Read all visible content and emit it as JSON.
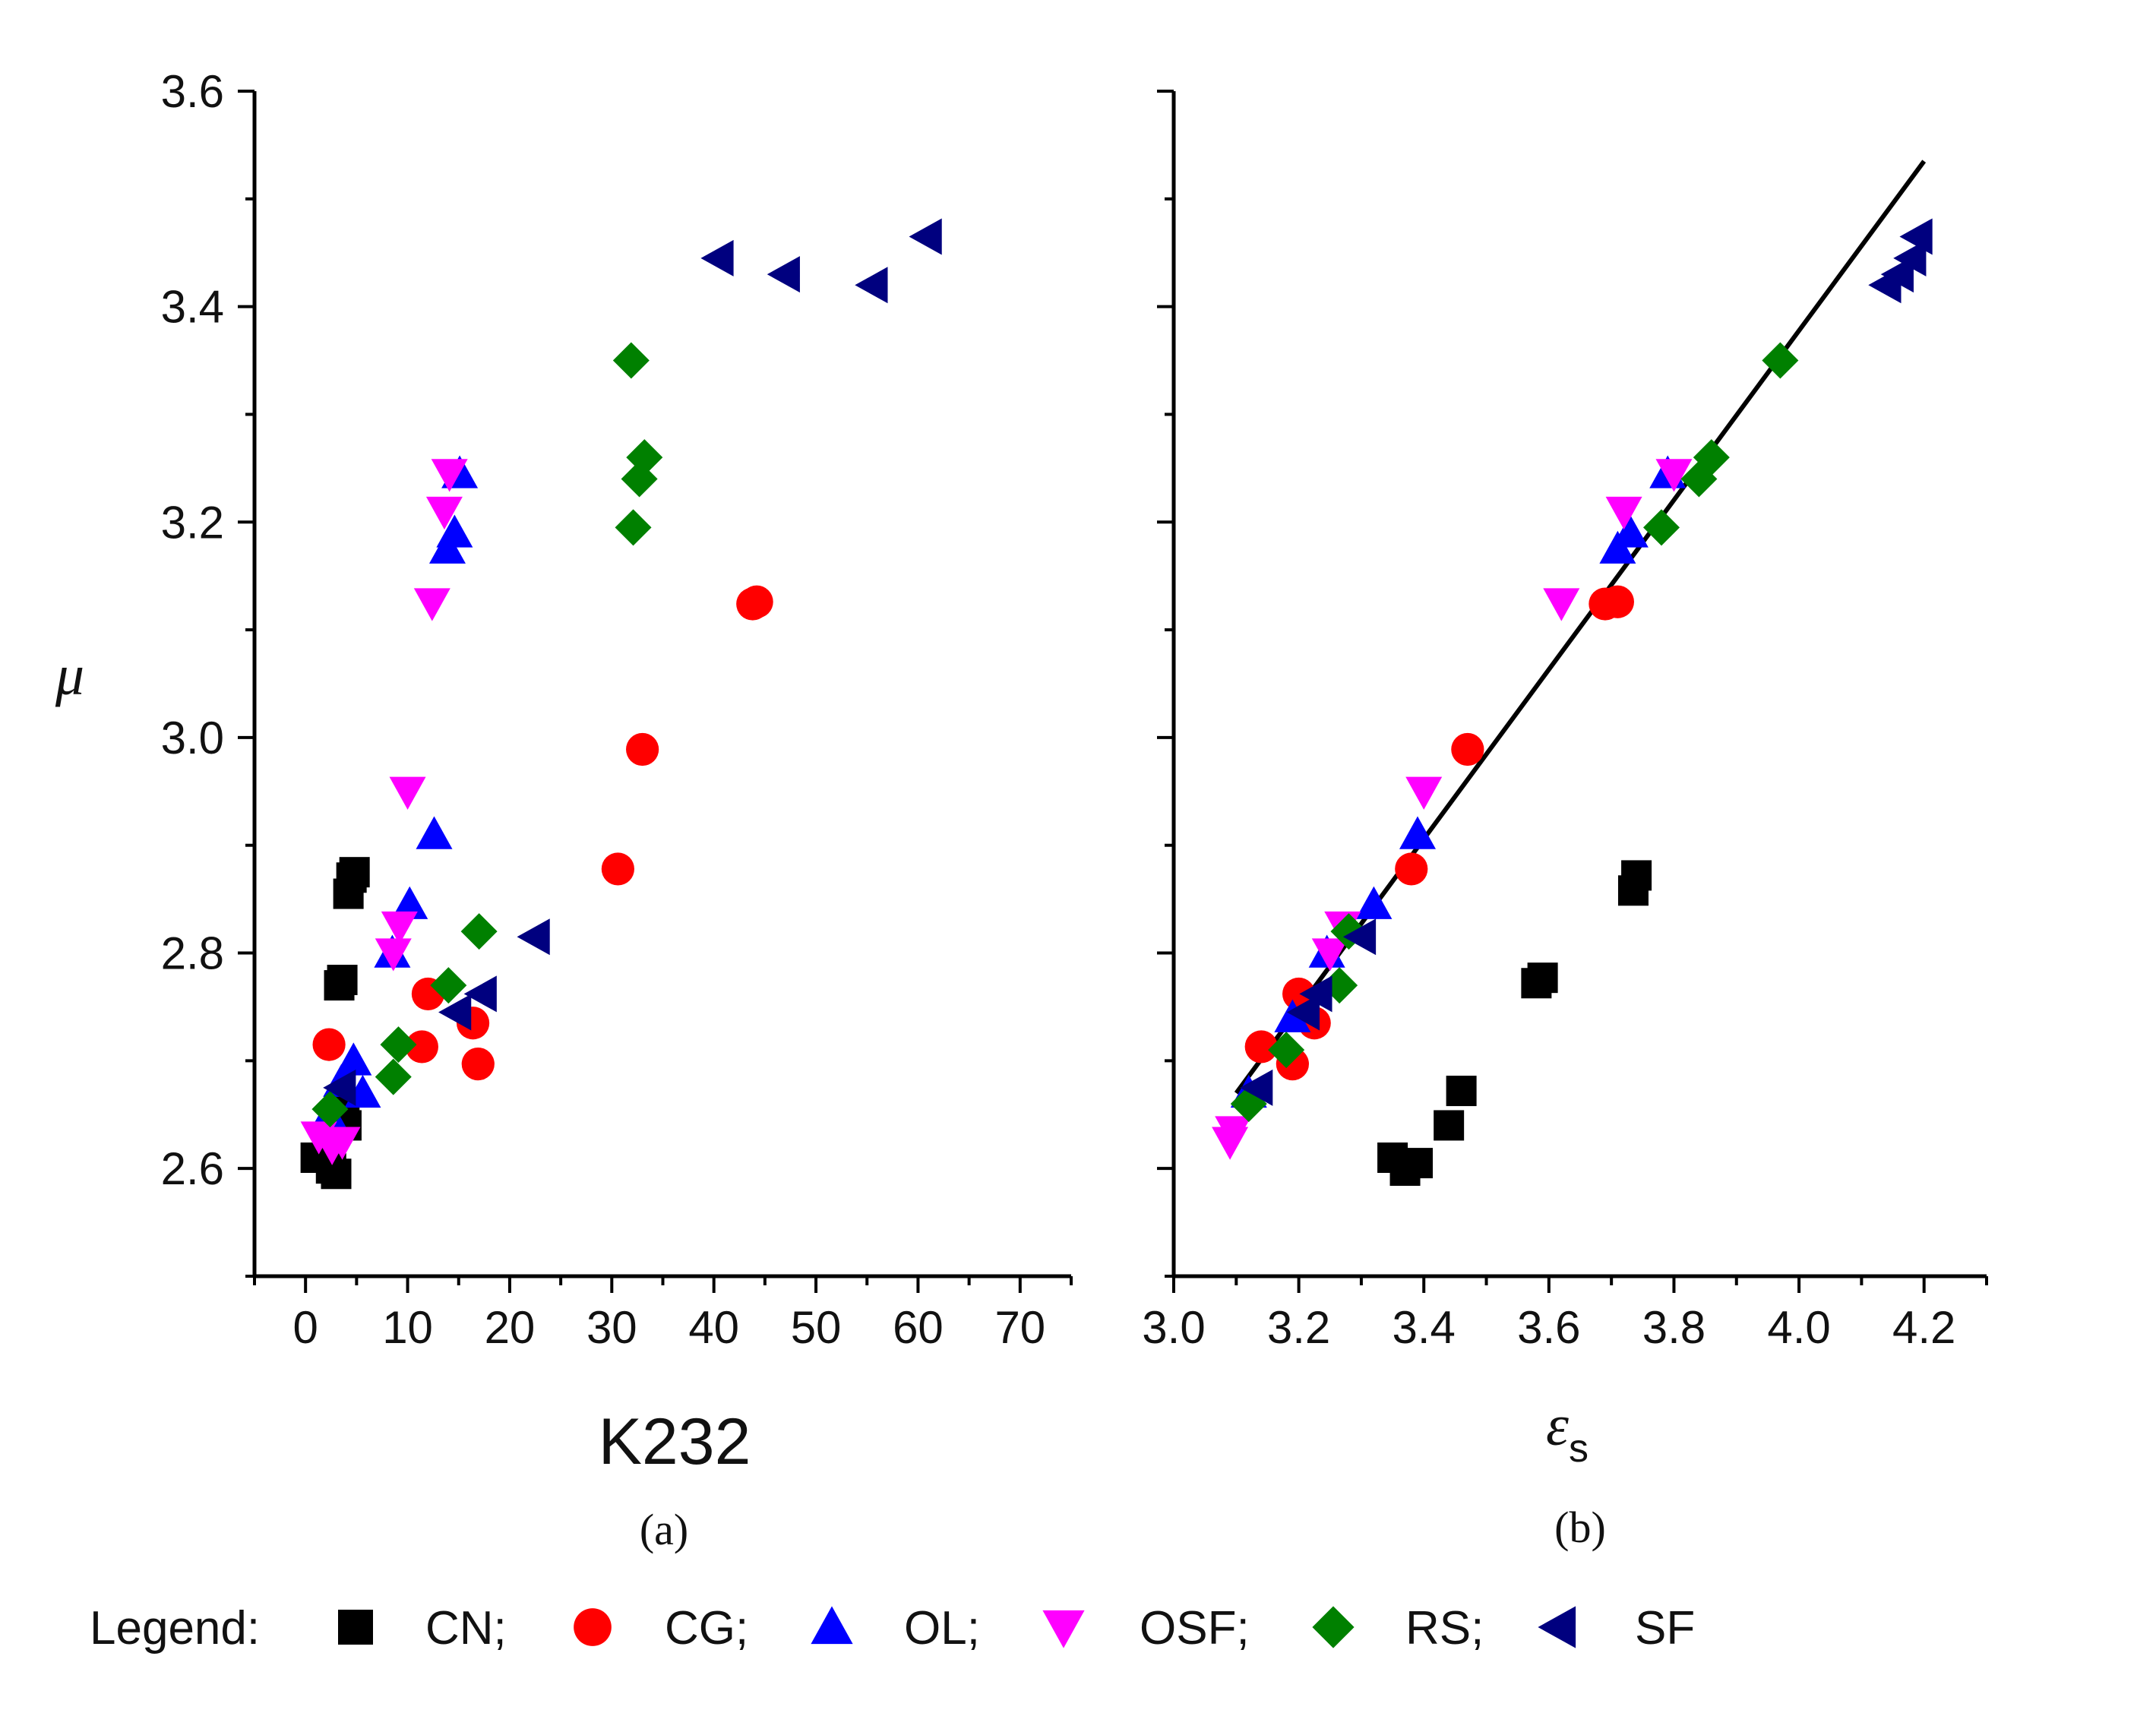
{
  "chart_data": [
    {
      "id": "a",
      "type": "scatter",
      "panel_label": "(a)",
      "xlabel": "K232",
      "ylabel": "μ",
      "xlim": [
        -5,
        75
      ],
      "ylim": [
        2.5,
        3.6
      ],
      "xticks": [
        0,
        10,
        20,
        30,
        40,
        50,
        60,
        70
      ],
      "xtick_labels": [
        "0",
        "10",
        "20",
        "30",
        "40",
        "50",
        "60",
        "70"
      ],
      "yticks": [
        2.6,
        2.8,
        3.0,
        3.2,
        3.4,
        3.6
      ],
      "ytick_labels": [
        "2.6",
        "2.8",
        "3.0",
        "3.2",
        "3.4",
        "3.6"
      ],
      "grid": false,
      "series": [
        {
          "name": "CN",
          "x": [
            1.0,
            2.5,
            3.0,
            3.3,
            3.6,
            3.8,
            4.0,
            4.2,
            4.5,
            4.8
          ],
          "y": [
            2.61,
            2.6,
            2.595,
            2.77,
            2.775,
            2.66,
            2.64,
            2.855,
            2.87,
            2.875
          ]
        },
        {
          "name": "CG",
          "x": [
            2.3,
            11.4,
            12.0,
            16.4,
            16.9,
            30.6,
            33.0,
            43.8,
            44.2
          ],
          "y": [
            2.715,
            2.713,
            2.762,
            2.735,
            2.697,
            2.878,
            2.989,
            3.124,
            3.126
          ]
        },
        {
          "name": "OL",
          "x": [
            2.3,
            3.5,
            4.7,
            5.6,
            8.5,
            10.2,
            12.6,
            13.9,
            14.6,
            15.1
          ],
          "y": [
            2.65,
            2.68,
            2.7,
            2.67,
            2.8,
            2.845,
            2.91,
            3.175,
            3.19,
            3.245
          ]
        },
        {
          "name": "OSF",
          "x": [
            1.3,
            2.6,
            3.6,
            8.6,
            9.2,
            10.0,
            12.4,
            13.6,
            14.1
          ],
          "y": [
            2.63,
            2.62,
            2.625,
            2.8,
            2.825,
            2.95,
            3.125,
            3.21,
            3.245
          ]
        },
        {
          "name": "RS",
          "x": [
            2.4,
            8.6,
            9.1,
            14.0,
            17.0,
            31.9,
            32.1,
            32.7,
            33.2
          ],
          "y": [
            2.655,
            2.685,
            2.715,
            2.77,
            2.82,
            3.35,
            3.195,
            3.24,
            3.26
          ]
        },
        {
          "name": "SF",
          "x": [
            3.5,
            14.8,
            17.3,
            22.5,
            40.5,
            47.0,
            55.6,
            60.9
          ],
          "y": [
            2.675,
            2.745,
            2.762,
            2.815,
            3.445,
            3.43,
            3.42,
            3.465
          ]
        }
      ]
    },
    {
      "id": "b",
      "type": "scatter",
      "panel_label": "(b)",
      "xlabel": "εs",
      "xlabel_symbol": "ε",
      "xlabel_sub": "s",
      "ylabel": "",
      "xlim": [
        3.0,
        4.3
      ],
      "ylim": [
        2.5,
        3.6
      ],
      "xticks": [
        3.0,
        3.2,
        3.4,
        3.6,
        3.8,
        4.0,
        4.2
      ],
      "xtick_labels": [
        "3.0",
        "3.2",
        "3.4",
        "3.6",
        "3.8",
        "4.0",
        "4.2"
      ],
      "yticks": [
        2.6,
        2.8,
        3.0,
        3.2,
        3.4,
        3.6
      ],
      "grid": false,
      "fit_line": {
        "x": [
          3.1,
          4.2
        ],
        "y": [
          2.67,
          3.535
        ]
      },
      "series": [
        {
          "name": "CN",
          "x": [
            3.35,
            3.37,
            3.39,
            3.44,
            3.46,
            3.58,
            3.59,
            3.735,
            3.74
          ],
          "y": [
            2.61,
            2.598,
            2.605,
            2.64,
            2.672,
            2.772,
            2.777,
            2.858,
            2.872
          ]
        },
        {
          "name": "CG",
          "x": [
            3.14,
            3.19,
            3.2,
            3.225,
            3.38,
            3.47,
            3.69,
            3.71
          ],
          "y": [
            2.713,
            2.697,
            2.762,
            2.735,
            2.878,
            2.989,
            3.124,
            3.126
          ]
        },
        {
          "name": "OL",
          "x": [
            3.12,
            3.19,
            3.245,
            3.32,
            3.39,
            3.71,
            3.73,
            3.79
          ],
          "y": [
            2.67,
            2.74,
            2.8,
            2.845,
            2.91,
            3.175,
            3.19,
            3.245
          ]
        },
        {
          "name": "OSF",
          "x": [
            3.09,
            3.095,
            3.25,
            3.27,
            3.4,
            3.62,
            3.72,
            3.8
          ],
          "y": [
            2.625,
            2.635,
            2.8,
            2.825,
            2.95,
            3.125,
            3.21,
            3.245
          ]
        },
        {
          "name": "RS",
          "x": [
            3.12,
            3.18,
            3.265,
            3.28,
            3.78,
            3.84,
            3.86,
            3.97
          ],
          "y": [
            2.66,
            2.71,
            2.77,
            2.82,
            3.195,
            3.24,
            3.26,
            3.35
          ]
        },
        {
          "name": "SF",
          "x": [
            3.135,
            3.21,
            3.23,
            3.3,
            4.14,
            4.16,
            4.18,
            4.19
          ],
          "y": [
            2.675,
            2.745,
            2.762,
            2.815,
            3.42,
            3.43,
            3.445,
            3.465
          ]
        }
      ]
    }
  ],
  "legend": {
    "title": "Legend:",
    "entries": [
      {
        "series": "CN",
        "label": "CN;",
        "marker": "square",
        "color": "#000000"
      },
      {
        "series": "CG",
        "label": "CG;",
        "marker": "circle",
        "color": "#ff0000"
      },
      {
        "series": "OL",
        "label": "OL;",
        "marker": "triangle-up",
        "color": "#0000ff"
      },
      {
        "series": "OSF",
        "label": "OSF;",
        "marker": "triangle-down",
        "color": "#ff00ff"
      },
      {
        "series": "RS",
        "label": "RS;",
        "marker": "diamond",
        "color": "#008000"
      },
      {
        "series": "SF",
        "label": "SF",
        "marker": "triangle-left",
        "color": "#00007f"
      }
    ]
  },
  "colors": {
    "fit_line": "#000000",
    "axis": "#000000",
    "background": "#ffffff"
  }
}
